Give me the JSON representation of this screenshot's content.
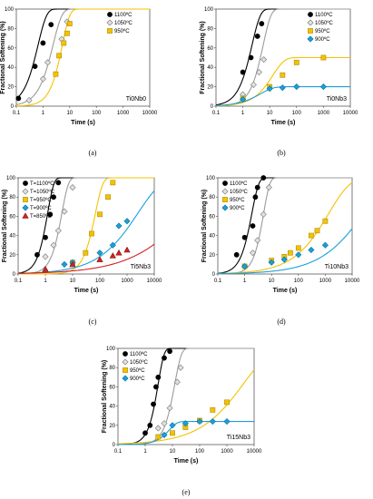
{
  "figure": {
    "panel_labels": [
      "(a)",
      "(b)",
      "(c)",
      "(d)",
      "(e)"
    ]
  },
  "styles": {
    "colors": {
      "1100": "#000000",
      "1050": "#9b9b9b",
      "950": "#f2c300",
      "900": "#1aa0db",
      "850": "#d42020"
    },
    "markers": {
      "1100": "circle",
      "1050": "diamond-open",
      "950": "square",
      "900": "diamond",
      "850": "triangle"
    }
  },
  "chart_data": [
    {
      "type": "scatter",
      "sample": "Ti0Nb0",
      "xlabel": "Time (s)",
      "ylabel": "Fractional Softening (%)",
      "xscale": "log",
      "xlim": [
        0.1,
        10000
      ],
      "ylim": [
        0,
        100
      ],
      "xticks": [
        "0.1",
        "1",
        "10",
        "100",
        "1000",
        "10000"
      ],
      "yticks": [
        0,
        20,
        40,
        60,
        80,
        100
      ],
      "legend_position": "top-right",
      "series": [
        {
          "name": "1100ºC",
          "key": "1100",
          "x": [
            0.12,
            0.5,
            1,
            2
          ],
          "y": [
            8,
            41,
            65,
            84
          ],
          "fit": {
            "t50": 0.5,
            "n": 1.35
          }
        },
        {
          "name": "1050ºC",
          "key": "1050",
          "x": [
            0.3,
            1,
            1.5,
            5,
            8
          ],
          "y": [
            6,
            28,
            45,
            69,
            87
          ],
          "fit": {
            "t50": 1.8,
            "n": 1.3
          }
        },
        {
          "name": "950ºC",
          "key": "950",
          "x": [
            3,
            4,
            6,
            8,
            10
          ],
          "y": [
            33,
            52,
            65,
            75,
            85
          ],
          "fit": {
            "t50": 4.2,
            "n": 1.55
          }
        }
      ]
    },
    {
      "type": "scatter",
      "sample": "Ti0Nb3",
      "xlabel": "Time (s)",
      "ylabel": "Fractional Softening (%)",
      "xscale": "log",
      "xlim": [
        0.1,
        10000
      ],
      "ylim": [
        0,
        100
      ],
      "xticks": [
        "0.1",
        "1",
        "10",
        "100",
        "1000",
        "10000"
      ],
      "yticks": [
        0,
        20,
        40,
        60,
        80,
        100
      ],
      "legend_position": "top-right",
      "series": [
        {
          "name": "1100ºC",
          "key": "1100",
          "x": [
            1,
            2,
            3.5,
            5
          ],
          "y": [
            35,
            50,
            72,
            85
          ],
          "fit": {
            "t50": 1.7,
            "n": 1.4
          }
        },
        {
          "name": "1050ºC",
          "key": "1050",
          "x": [
            1,
            2.5,
            4,
            6
          ],
          "y": [
            12,
            22,
            35,
            48
          ],
          "fit": {
            "t50": 4.5,
            "n": 1.5
          }
        },
        {
          "name": "950ºC",
          "key": "950",
          "x": [
            1,
            10,
            30,
            100,
            1000
          ],
          "y": [
            8,
            20,
            32,
            45,
            50
          ],
          "fit": {
            "t50": 9,
            "n": 1.0,
            "max": 50
          }
        },
        {
          "name": "900ºC",
          "key": "900",
          "x": [
            1,
            10,
            30,
            100,
            1000
          ],
          "y": [
            7,
            18,
            19,
            20,
            20
          ],
          "fit": {
            "t50": 3,
            "n": 0.9,
            "max": 20
          }
        }
      ]
    },
    {
      "type": "scatter",
      "sample": "Ti5Nb3",
      "xlabel": "Time (s)",
      "ylabel": "Fractional Softening (%)",
      "xscale": "log",
      "xlim": [
        0.1,
        10000
      ],
      "ylim": [
        0,
        100
      ],
      "xticks": [
        "0.1",
        "1",
        "10",
        "100",
        "1000",
        "10000"
      ],
      "yticks": [
        0,
        20,
        40,
        60,
        80,
        100
      ],
      "legend_position": "top-left",
      "series": [
        {
          "name": "T=1100ºC",
          "key": "1100",
          "x": [
            0.5,
            1,
            1.5,
            2,
            3
          ],
          "y": [
            20,
            38,
            62,
            80,
            95
          ],
          "fit": {
            "t50": 1.0,
            "n": 1.9
          }
        },
        {
          "name": "T=1050ºC",
          "key": "1050",
          "x": [
            1,
            2,
            3,
            5,
            10
          ],
          "y": [
            18,
            30,
            45,
            65,
            90
          ],
          "fit": {
            "t50": 3.3,
            "n": 1.8
          }
        },
        {
          "name": "T=950ºC",
          "key": "950",
          "x": [
            10,
            30,
            50,
            100,
            200,
            300
          ],
          "y": [
            12,
            22,
            42,
            62,
            80,
            95
          ],
          "fit": {
            "t50": 55,
            "n": 1.6
          }
        },
        {
          "name": "T=900ºC",
          "key": "900",
          "x": [
            5,
            10,
            100,
            300,
            500,
            1000
          ],
          "y": [
            10,
            12,
            22,
            30,
            50,
            55
          ],
          "fit": {
            "t50": 1200,
            "n": 0.5
          }
        },
        {
          "name": "T=850ºC",
          "key": "850",
          "x": [
            1,
            10,
            100,
            300,
            500,
            1000
          ],
          "y": [
            5,
            10,
            15,
            19,
            22,
            25
          ],
          "fit": {
            "t50": 60000,
            "n": 0.35
          }
        }
      ]
    },
    {
      "type": "scatter",
      "sample": "Ti10Nb3",
      "xlabel": "Time (s)",
      "ylabel": "Fractional Softening (%)",
      "xscale": "log",
      "xlim": [
        0.1,
        10000
      ],
      "ylim": [
        0,
        100
      ],
      "xticks": [
        "0.1",
        "1",
        "10",
        "100",
        "1000",
        "10000"
      ],
      "yticks": [
        0,
        20,
        40,
        60,
        80,
        100
      ],
      "legend_position": "top-left",
      "series": [
        {
          "name": "1100ºC",
          "key": "1100",
          "x": [
            0.5,
            1,
            2,
            2.5,
            3,
            5
          ],
          "y": [
            20,
            38,
            50,
            80,
            90,
            100
          ],
          "fit": {
            "t50": 1.5,
            "n": 1.7
          }
        },
        {
          "name": "1050ºC",
          "key": "1050",
          "x": [
            2,
            3,
            5,
            8
          ],
          "y": [
            22,
            35,
            62,
            90
          ],
          "fit": {
            "t50": 4.2,
            "n": 1.9
          }
        },
        {
          "name": "950ºC",
          "key": "950",
          "x": [
            1,
            10,
            30,
            50,
            100,
            300,
            500,
            1000
          ],
          "y": [
            8,
            14,
            18,
            22,
            27,
            40,
            45,
            55
          ],
          "fit": {
            "t50": 700,
            "n": 0.55
          }
        },
        {
          "name": "900ºC",
          "key": "900",
          "x": [
            1,
            10,
            30,
            100,
            300,
            1000
          ],
          "y": [
            8,
            12,
            15,
            20,
            25,
            30
          ],
          "fit": {
            "t50": 12000,
            "n": 0.45
          }
        }
      ]
    },
    {
      "type": "scatter",
      "sample": "Ti15Nb3",
      "xlabel": "Time (s)",
      "ylabel": "Fractional Softening (%)",
      "xscale": "log",
      "xlim": [
        0.1,
        10000
      ],
      "ylim": [
        0,
        100
      ],
      "xticks": [
        "0.1",
        "1",
        "10",
        "100",
        "1000",
        "10000"
      ],
      "yticks": [
        0,
        20,
        40,
        60,
        80,
        100
      ],
      "legend_position": "top-left",
      "series": [
        {
          "name": "1100ºC",
          "key": "1100",
          "x": [
            1,
            1.5,
            2,
            2.5,
            3,
            5,
            8
          ],
          "y": [
            12,
            20,
            42,
            60,
            70,
            90,
            97
          ],
          "fit": {
            "t50": 2.5,
            "n": 2.0
          }
        },
        {
          "name": "1050ºC",
          "key": "1050",
          "x": [
            3,
            5,
            8,
            15,
            20
          ],
          "y": [
            17,
            22,
            38,
            65,
            80
          ],
          "fit": {
            "t50": 10,
            "n": 1.8
          }
        },
        {
          "name": "950ºC",
          "key": "950",
          "x": [
            3,
            10,
            30,
            100,
            300,
            1000
          ],
          "y": [
            8,
            12,
            18,
            25,
            36,
            44
          ],
          "fit": {
            "t50": 1800,
            "n": 0.45
          }
        },
        {
          "name": "900ºC",
          "key": "900",
          "x": [
            5,
            10,
            30,
            100,
            300,
            1000
          ],
          "y": [
            10,
            20,
            22,
            24,
            24,
            24
          ],
          "fit": {
            "t50": 6,
            "n": 1.5,
            "max": 24
          }
        }
      ]
    }
  ]
}
